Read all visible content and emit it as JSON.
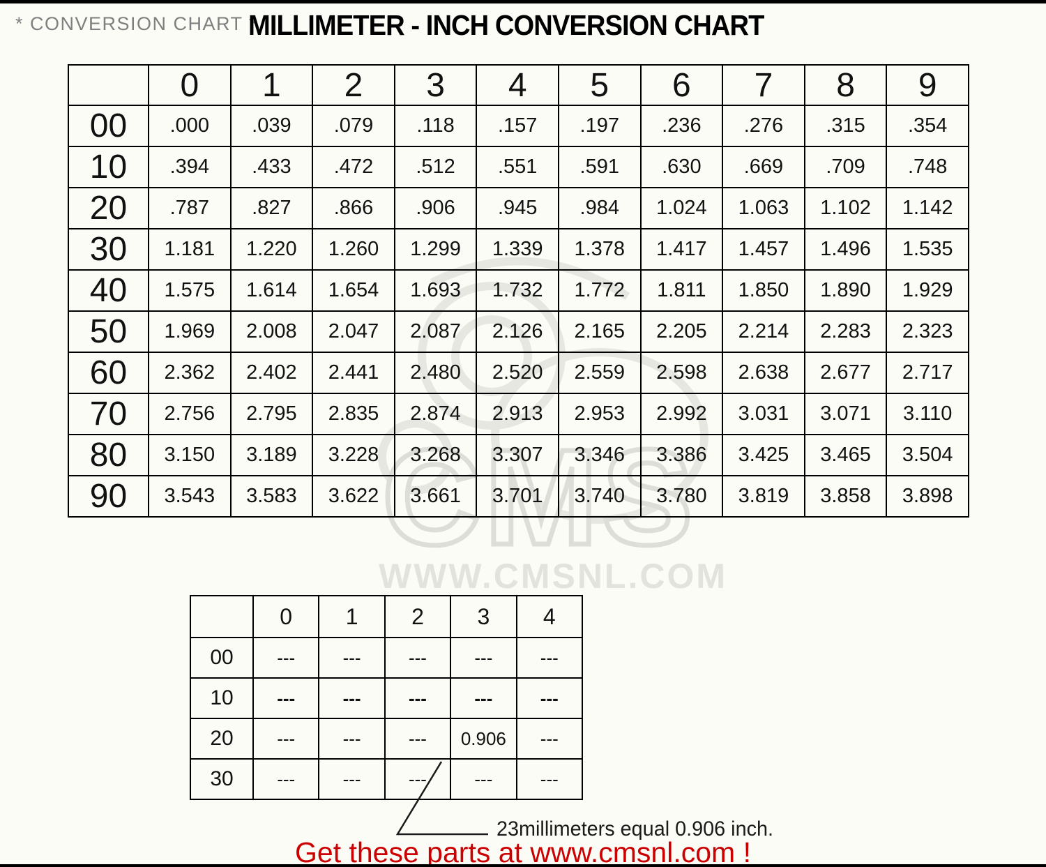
{
  "header": {
    "note": "* CONVERSION CHART *",
    "title": "MILLIMETER - INCH CONVERSION CHART"
  },
  "watermark": {
    "logo": "CMS",
    "url": "WWW.CMSNL.COM",
    "color": "#e3e3de"
  },
  "annotation": {
    "label": "23millimeters equal 0.906 inch."
  },
  "footer": {
    "label": "Get these parts at www.cmsnl.com !",
    "color": "#cc0000"
  },
  "chart_data": [
    {
      "type": "table",
      "title": "MILLIMETER - INCH CONVERSION CHART",
      "corner_label": "",
      "col_headers": [
        "0",
        "1",
        "2",
        "3",
        "4",
        "5",
        "6",
        "7",
        "8",
        "9"
      ],
      "row_headers": [
        "00",
        "10",
        "20",
        "30",
        "40",
        "50",
        "60",
        "70",
        "80",
        "90"
      ],
      "values": [
        [
          ".000",
          ".039",
          ".079",
          ".118",
          ".157",
          ".197",
          ".236",
          ".276",
          ".315",
          ".354"
        ],
        [
          ".394",
          ".433",
          ".472",
          ".512",
          ".551",
          ".591",
          ".630",
          ".669",
          ".709",
          ".748"
        ],
        [
          ".787",
          ".827",
          ".866",
          ".906",
          ".945",
          ".984",
          "1.024",
          "1.063",
          "1.102",
          "1.142"
        ],
        [
          "1.181",
          "1.220",
          "1.260",
          "1.299",
          "1.339",
          "1.378",
          "1.417",
          "1.457",
          "1.496",
          "1.535"
        ],
        [
          "1.575",
          "1.614",
          "1.654",
          "1.693",
          "1.732",
          "1.772",
          "1.811",
          "1.850",
          "1.890",
          "1.929"
        ],
        [
          "1.969",
          "2.008",
          "2.047",
          "2.087",
          "2.126",
          "2.165",
          "2.205",
          "2.214",
          "2.283",
          "2.323"
        ],
        [
          "2.362",
          "2.402",
          "2.441",
          "2.480",
          "2.520",
          "2.559",
          "2.598",
          "2.638",
          "2.677",
          "2.717"
        ],
        [
          "2.756",
          "2.795",
          "2.835",
          "2.874",
          "2.913",
          "2.953",
          "2.992",
          "3.031",
          "3.071",
          "3.110"
        ],
        [
          "3.150",
          "3.189",
          "3.228",
          "3.268",
          "3.307",
          "3.346",
          "3.386",
          "3.425",
          "3.465",
          "3.504"
        ],
        [
          "3.543",
          "3.583",
          "3.622",
          "3.661",
          "3.701",
          "3.740",
          "3.780",
          "3.819",
          "3.858",
          "3.898"
        ]
      ],
      "bold_rows": []
    },
    {
      "type": "table",
      "title": "example lookup table",
      "corner_label": "",
      "col_headers": [
        "0",
        "1",
        "2",
        "3",
        "4"
      ],
      "row_headers": [
        "00",
        "10",
        "20",
        "30"
      ],
      "values": [
        [
          "---",
          "---",
          "---",
          "---",
          "---"
        ],
        [
          "---",
          "---",
          "---",
          "---",
          "---"
        ],
        [
          "---",
          "---",
          "---",
          "0.906",
          "---"
        ],
        [
          "---",
          "---",
          "---",
          "---",
          "---"
        ]
      ],
      "bold_rows": [
        "10"
      ],
      "highlight_cell": {
        "row": "20",
        "col": "3",
        "value": "0.906"
      }
    }
  ]
}
